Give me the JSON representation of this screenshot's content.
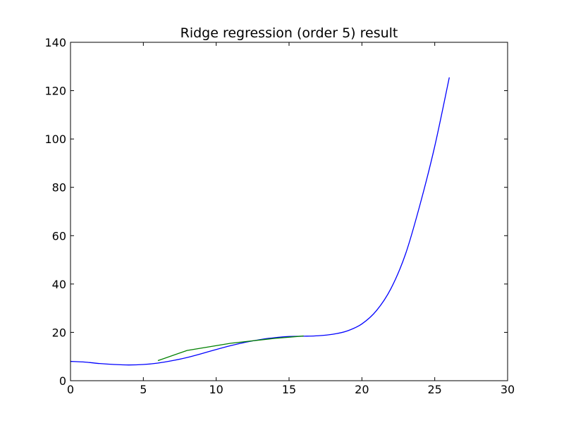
{
  "chart_data": {
    "type": "line",
    "title": "Ridge regression (order 5) result",
    "xlabel": "",
    "ylabel": "",
    "xlim": [
      0,
      30
    ],
    "ylim": [
      0,
      140
    ],
    "xticks": [
      0,
      5,
      10,
      15,
      20,
      25,
      30
    ],
    "yticks": [
      0,
      20,
      40,
      60,
      80,
      100,
      120,
      140
    ],
    "grid": false,
    "legend": "none",
    "series": [
      {
        "color": "#0000ff",
        "x": [
          0,
          1,
          2,
          3,
          4,
          5,
          6,
          7,
          8,
          9,
          10,
          11,
          12,
          13,
          14,
          15,
          16,
          17,
          18,
          19,
          20,
          21,
          22,
          23,
          24,
          25,
          26
        ],
        "y": [
          8.0,
          7.7,
          7.1,
          6.7,
          6.5,
          6.7,
          7.3,
          8.3,
          9.6,
          11.2,
          12.9,
          14.5,
          15.9,
          17.0,
          17.8,
          18.3,
          18.4,
          18.6,
          19.2,
          20.6,
          23.5,
          29.0,
          38.2,
          52.5,
          73.1,
          97.0,
          125.5
        ]
      },
      {
        "color": "#008000",
        "x": [
          6,
          8,
          11,
          14,
          16
        ],
        "y": [
          8.3,
          12.5,
          15.5,
          17.5,
          18.5
        ]
      }
    ]
  }
}
